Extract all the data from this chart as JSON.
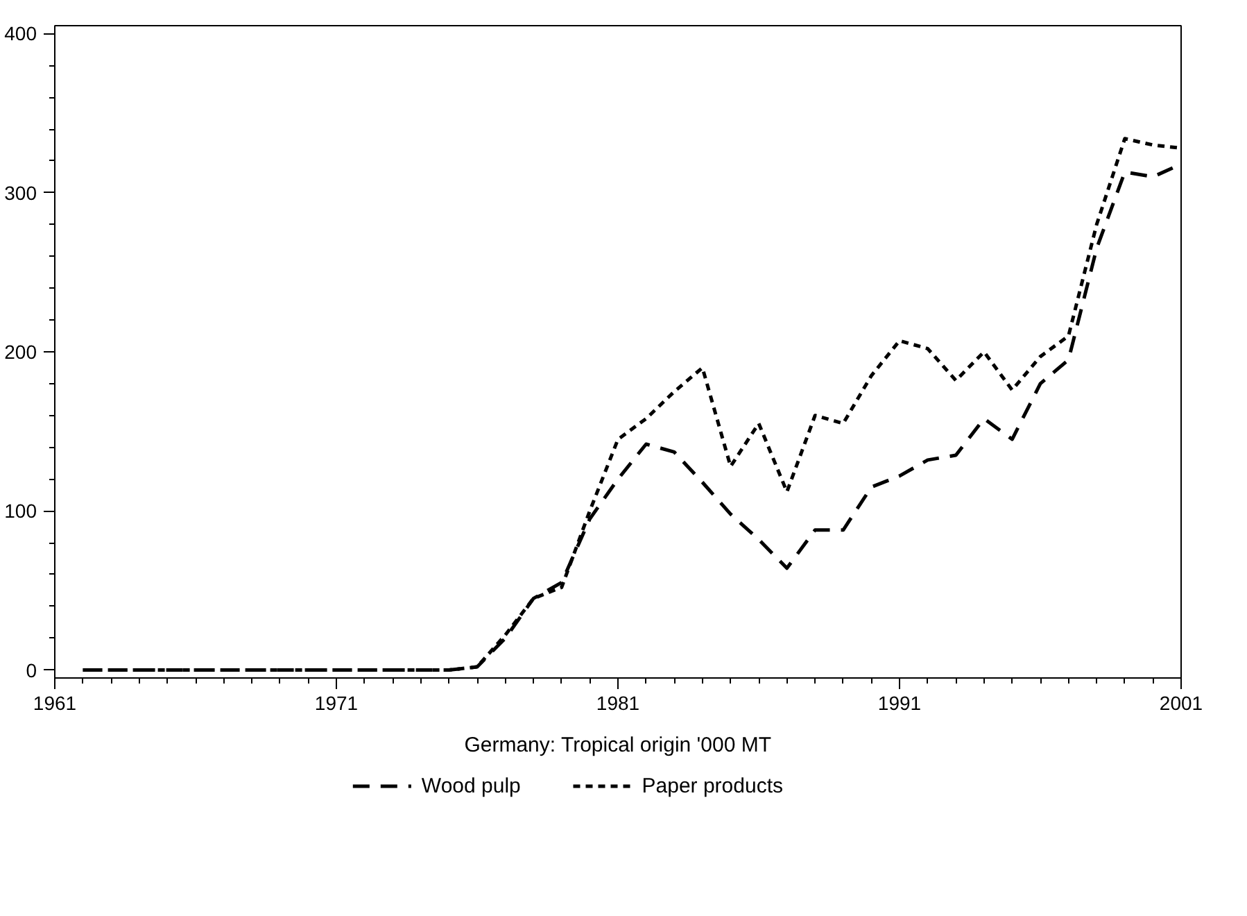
{
  "chart_data": {
    "type": "line",
    "xlabel": "Germany: Tropical origin '000 MT",
    "x": [
      1962,
      1963,
      1964,
      1965,
      1966,
      1967,
      1968,
      1969,
      1970,
      1971,
      1972,
      1973,
      1974,
      1975,
      1976,
      1977,
      1978,
      1979,
      1980,
      1981,
      1982,
      1983,
      1984,
      1985,
      1986,
      1987,
      1988,
      1989,
      1990,
      1991,
      1992,
      1993,
      1994,
      1995,
      1996,
      1997,
      1998,
      1999,
      2000,
      2001
    ],
    "series": [
      {
        "name": "Wood pulp",
        "color": "#000000",
        "line_style": "dashed",
        "values": [
          0,
          0,
          0,
          0,
          0,
          0,
          0,
          0,
          0,
          0,
          0,
          0,
          0,
          0,
          2,
          20,
          45,
          55,
          95,
          120,
          142,
          137,
          118,
          98,
          82,
          64,
          88,
          88,
          115,
          122,
          132,
          135,
          158,
          145,
          180,
          195,
          265,
          313,
          310,
          318
        ]
      },
      {
        "name": "Paper products",
        "color": "#000000",
        "line_style": "dotted",
        "values": [
          0,
          0,
          0,
          0,
          0,
          0,
          0,
          0,
          0,
          0,
          0,
          0,
          0,
          0,
          2,
          22,
          45,
          52,
          100,
          145,
          158,
          175,
          190,
          128,
          155,
          112,
          160,
          155,
          185,
          207,
          202,
          182,
          200,
          176,
          197,
          210,
          280,
          334,
          330,
          328
        ]
      }
    ],
    "xlim": [
      1961,
      2001
    ],
    "xticks": [
      1961,
      1971,
      1981,
      1991,
      2001
    ],
    "ylim": [
      -5,
      405
    ],
    "yticks": [
      0,
      100,
      200,
      300,
      400
    ],
    "grid": false,
    "legend": "bottom",
    "marker": "none"
  }
}
